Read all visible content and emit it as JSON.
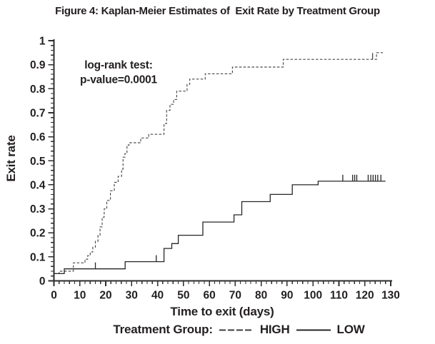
{
  "figure": {
    "title": "Figure 4: Kaplan-Meier Estimates of  Exit Rate by Treatment Group"
  },
  "colors": {
    "ink": "#231f20",
    "axis": "#2e2e2e",
    "high_line": "#4a4a4a",
    "low_line": "#262626",
    "background": "#ffffff"
  },
  "chart_data": {
    "type": "line",
    "subtype": "kaplan-meier-step",
    "title": "Figure 4: Kaplan-Meier Estimates of  Exit Rate by Treatment Group",
    "xlabel": "Time to exit (days)",
    "ylabel": "Exit rate",
    "xlim": [
      0,
      130
    ],
    "ylim": [
      0,
      1
    ],
    "x_ticks": [
      0,
      10,
      20,
      30,
      40,
      50,
      60,
      70,
      80,
      90,
      100,
      110,
      120,
      130
    ],
    "y_ticks": [
      0,
      0.1,
      0.2,
      0.3,
      0.4,
      0.5,
      0.6,
      0.7,
      0.8,
      0.9,
      1
    ],
    "y_tick_labels": [
      "0",
      "0.1",
      "0.2",
      "0.3",
      "0.4",
      "0.5",
      "0.6",
      "0.7",
      "0.8",
      "0.9",
      "1"
    ],
    "x_minor_step": 2,
    "y_minor_step": 0.02,
    "grid": false,
    "annotation": {
      "lines": [
        "log-rank test:",
        "p-value=0.0001"
      ],
      "position": "upper-left"
    },
    "legend": {
      "prefix": "Treatment Group:",
      "position": "below-chart",
      "entries": [
        {
          "name": "HIGH",
          "style": "dashed"
        },
        {
          "name": "LOW",
          "style": "solid"
        }
      ]
    },
    "series": [
      {
        "name": "HIGH",
        "style": "dashed",
        "points": [
          [
            0,
            0.03
          ],
          [
            2,
            0.04
          ],
          [
            7.5,
            0.075
          ],
          [
            12,
            0.09
          ],
          [
            13,
            0.105
          ],
          [
            14,
            0.12
          ],
          [
            15,
            0.14
          ],
          [
            16,
            0.165
          ],
          [
            17,
            0.19
          ],
          [
            17.8,
            0.225
          ],
          [
            18.6,
            0.265
          ],
          [
            19.4,
            0.3
          ],
          [
            20.4,
            0.335
          ],
          [
            21.8,
            0.375
          ],
          [
            23.3,
            0.41
          ],
          [
            24.8,
            0.435
          ],
          [
            26.1,
            0.465
          ],
          [
            26.7,
            0.515
          ],
          [
            27.4,
            0.53
          ],
          [
            28.2,
            0.565
          ],
          [
            29,
            0.575
          ],
          [
            33.5,
            0.595
          ],
          [
            36.6,
            0.61
          ],
          [
            42.5,
            0.655
          ],
          [
            43.5,
            0.71
          ],
          [
            44.8,
            0.735
          ],
          [
            46.2,
            0.755
          ],
          [
            47.4,
            0.79
          ],
          [
            51.4,
            0.818
          ],
          [
            52.4,
            0.84
          ],
          [
            58.4,
            0.862
          ],
          [
            68.9,
            0.89
          ],
          [
            88.5,
            0.922
          ],
          [
            124.5,
            0.95
          ]
        ],
        "end_x": 127,
        "censor_ticks": [
          [
            123,
            0.922
          ]
        ]
      },
      {
        "name": "LOW",
        "style": "solid",
        "points": [
          [
            0,
            0.03
          ],
          [
            4,
            0.05
          ],
          [
            27.5,
            0.08
          ],
          [
            42.5,
            0.135
          ],
          [
            45.5,
            0.155
          ],
          [
            48,
            0.19
          ],
          [
            57.5,
            0.245
          ],
          [
            69.5,
            0.275
          ],
          [
            72.5,
            0.33
          ],
          [
            83.5,
            0.36
          ],
          [
            92,
            0.4
          ],
          [
            102,
            0.415
          ]
        ],
        "end_x": 128,
        "censor_ticks": [
          [
            16,
            0.05
          ],
          [
            39.5,
            0.08
          ],
          [
            111.5,
            0.415
          ],
          [
            115.3,
            0.415
          ],
          [
            116.1,
            0.415
          ],
          [
            116.9,
            0.415
          ],
          [
            121.3,
            0.415
          ],
          [
            122.3,
            0.415
          ],
          [
            123.2,
            0.415
          ],
          [
            124.1,
            0.415
          ],
          [
            125,
            0.415
          ],
          [
            126.2,
            0.415
          ]
        ]
      }
    ]
  }
}
